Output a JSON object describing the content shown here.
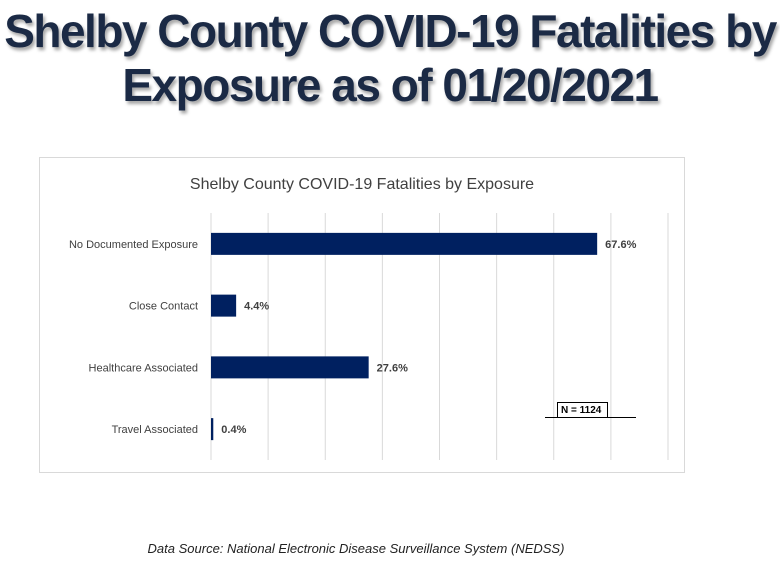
{
  "page": {
    "title_line1": "Shelby County COVID-19 Fatalities by",
    "title_line2": "Exposure as of 01/20/2021",
    "footer": "Data Source: National Electronic Disease Surveillance System (NEDSS)"
  },
  "colors": {
    "bar": "#002060",
    "grid": "#d9d9d9",
    "label": "#404040"
  },
  "chart_data": {
    "type": "bar",
    "orientation": "horizontal",
    "title": "Shelby County COVID-19 Fatalities by Exposure",
    "categories": [
      "No Documented Exposure",
      "Close Contact",
      "Healthcare Associated",
      "Travel Associated"
    ],
    "values": [
      67.6,
      4.4,
      27.6,
      0.4
    ],
    "data_labels": [
      "67.6%",
      "4.4%",
      "27.6%",
      "0.4%"
    ],
    "unit": "%",
    "xlabel": "",
    "ylabel": "",
    "xlim": [
      0,
      80
    ],
    "grid_step": 10,
    "grid": true,
    "x_tick_labels_visible": false,
    "annotation": "N = 1124",
    "legend": "none"
  }
}
